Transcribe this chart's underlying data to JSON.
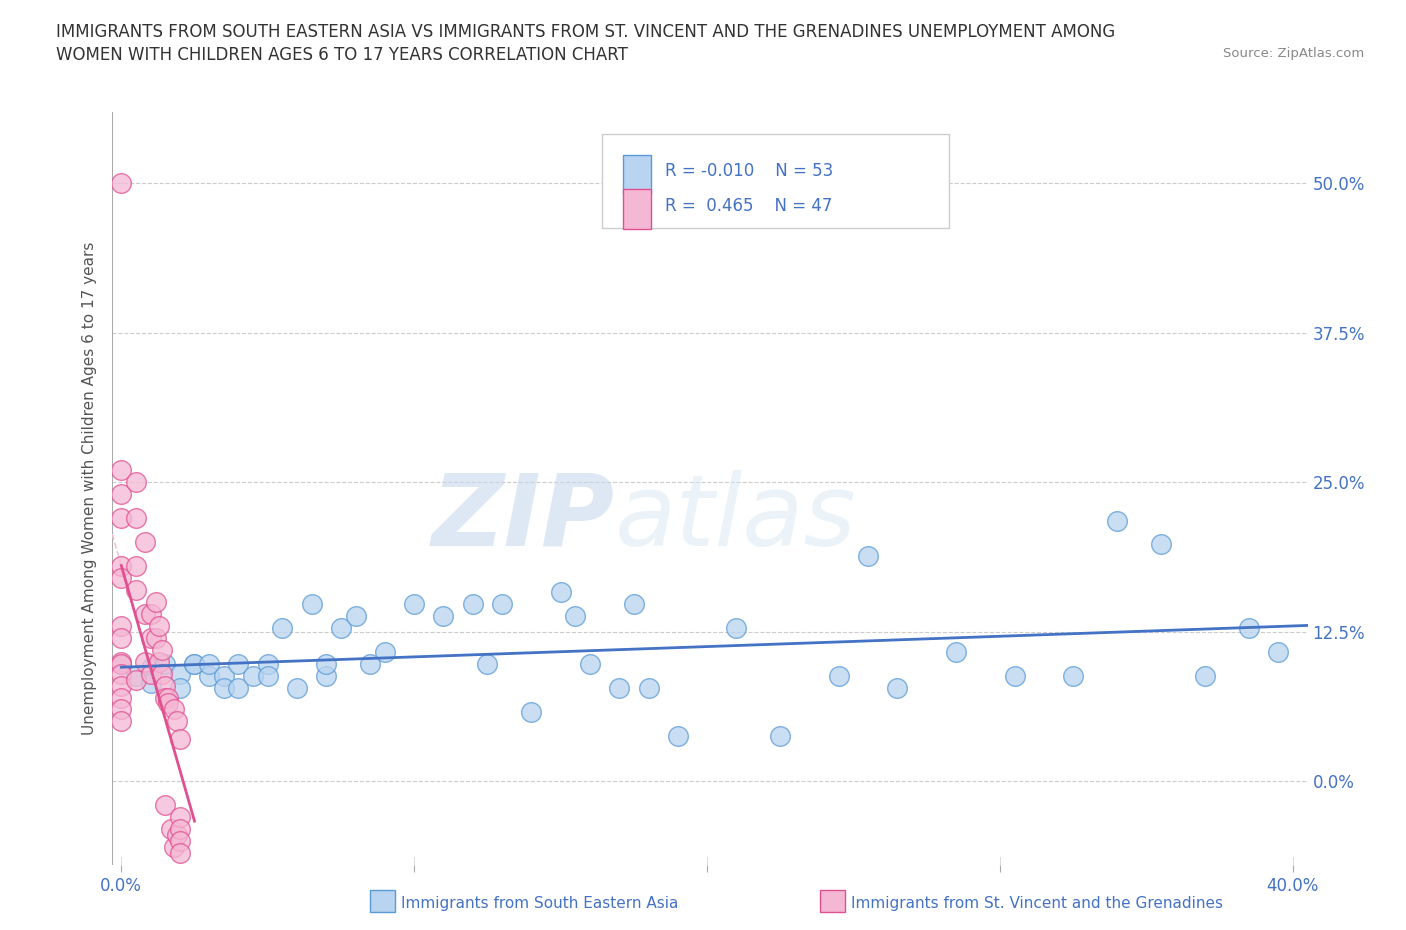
{
  "title_line1": "IMMIGRANTS FROM SOUTH EASTERN ASIA VS IMMIGRANTS FROM ST. VINCENT AND THE GRENADINES UNEMPLOYMENT AMONG",
  "title_line2": "WOMEN WITH CHILDREN AGES 6 TO 17 YEARS CORRELATION CHART",
  "source_text": "Source: ZipAtlas.com",
  "ylabel": "Unemployment Among Women with Children Ages 6 to 17 years",
  "xlim": [
    -0.003,
    0.405
  ],
  "ylim": [
    -0.07,
    0.56
  ],
  "yticks": [
    0.0,
    0.125,
    0.25,
    0.375,
    0.5
  ],
  "ytick_labels": [
    "0.0%",
    "12.5%",
    "25.0%",
    "37.5%",
    "50.0%"
  ],
  "xticks": [
    0.0,
    0.1,
    0.2,
    0.3,
    0.4
  ],
  "xtick_labels": [
    "0.0%",
    "",
    "",
    "",
    "40.0%"
  ],
  "color_blue": "#b8d4f0",
  "color_pink": "#f5b8d4",
  "color_blue_edge": "#5b9bd5",
  "color_pink_edge": "#e05090",
  "color_blue_line": "#4472c4",
  "color_pink_line": "#e05090",
  "color_blue_dash": "#c0c8e0",
  "color_pink_dash": "#f0c0d8",
  "color_text": "#4472c4",
  "watermark_zip": "ZIP",
  "watermark_atlas": "atlas",
  "blue_points_x": [
    0.0,
    0.005,
    0.01,
    0.01,
    0.015,
    0.02,
    0.02,
    0.025,
    0.025,
    0.03,
    0.03,
    0.035,
    0.035,
    0.04,
    0.04,
    0.045,
    0.05,
    0.05,
    0.055,
    0.06,
    0.065,
    0.07,
    0.07,
    0.075,
    0.08,
    0.085,
    0.09,
    0.1,
    0.11,
    0.12,
    0.125,
    0.13,
    0.14,
    0.15,
    0.155,
    0.16,
    0.17,
    0.175,
    0.18,
    0.19,
    0.21,
    0.225,
    0.245,
    0.255,
    0.265,
    0.285,
    0.305,
    0.325,
    0.34,
    0.355,
    0.37,
    0.385,
    0.395
  ],
  "blue_points_y": [
    0.098,
    0.088,
    0.095,
    0.082,
    0.098,
    0.09,
    0.078,
    0.098,
    0.098,
    0.088,
    0.098,
    0.088,
    0.078,
    0.098,
    0.078,
    0.088,
    0.098,
    0.088,
    0.128,
    0.078,
    0.148,
    0.088,
    0.098,
    0.128,
    0.138,
    0.098,
    0.108,
    0.148,
    0.138,
    0.148,
    0.098,
    0.148,
    0.058,
    0.158,
    0.138,
    0.098,
    0.078,
    0.148,
    0.078,
    0.038,
    0.128,
    0.038,
    0.088,
    0.188,
    0.078,
    0.108,
    0.088,
    0.088,
    0.218,
    0.198,
    0.088,
    0.128,
    0.108
  ],
  "pink_points_x": [
    0.0,
    0.0,
    0.0,
    0.0,
    0.0,
    0.0,
    0.0,
    0.0,
    0.0,
    0.0,
    0.0,
    0.0,
    0.0,
    0.0,
    0.0,
    0.005,
    0.005,
    0.005,
    0.005,
    0.005,
    0.008,
    0.008,
    0.008,
    0.01,
    0.01,
    0.01,
    0.012,
    0.012,
    0.013,
    0.013,
    0.014,
    0.014,
    0.015,
    0.015,
    0.015,
    0.016,
    0.016,
    0.017,
    0.018,
    0.018,
    0.019,
    0.019,
    0.02,
    0.02,
    0.02,
    0.02,
    0.02
  ],
  "pink_points_y": [
    0.5,
    0.26,
    0.24,
    0.22,
    0.18,
    0.17,
    0.13,
    0.12,
    0.1,
    0.098,
    0.09,
    0.08,
    0.07,
    0.06,
    0.05,
    0.25,
    0.22,
    0.18,
    0.16,
    0.085,
    0.2,
    0.14,
    0.1,
    0.14,
    0.12,
    0.09,
    0.15,
    0.12,
    0.13,
    0.1,
    0.11,
    0.09,
    0.08,
    0.07,
    -0.02,
    0.07,
    0.065,
    -0.04,
    0.06,
    -0.055,
    0.05,
    -0.045,
    -0.03,
    -0.04,
    0.035,
    -0.05,
    -0.06
  ],
  "legend_label_blue": "Immigrants from South Eastern Asia",
  "legend_label_pink": "Immigrants from St. Vincent and the Grenadines"
}
